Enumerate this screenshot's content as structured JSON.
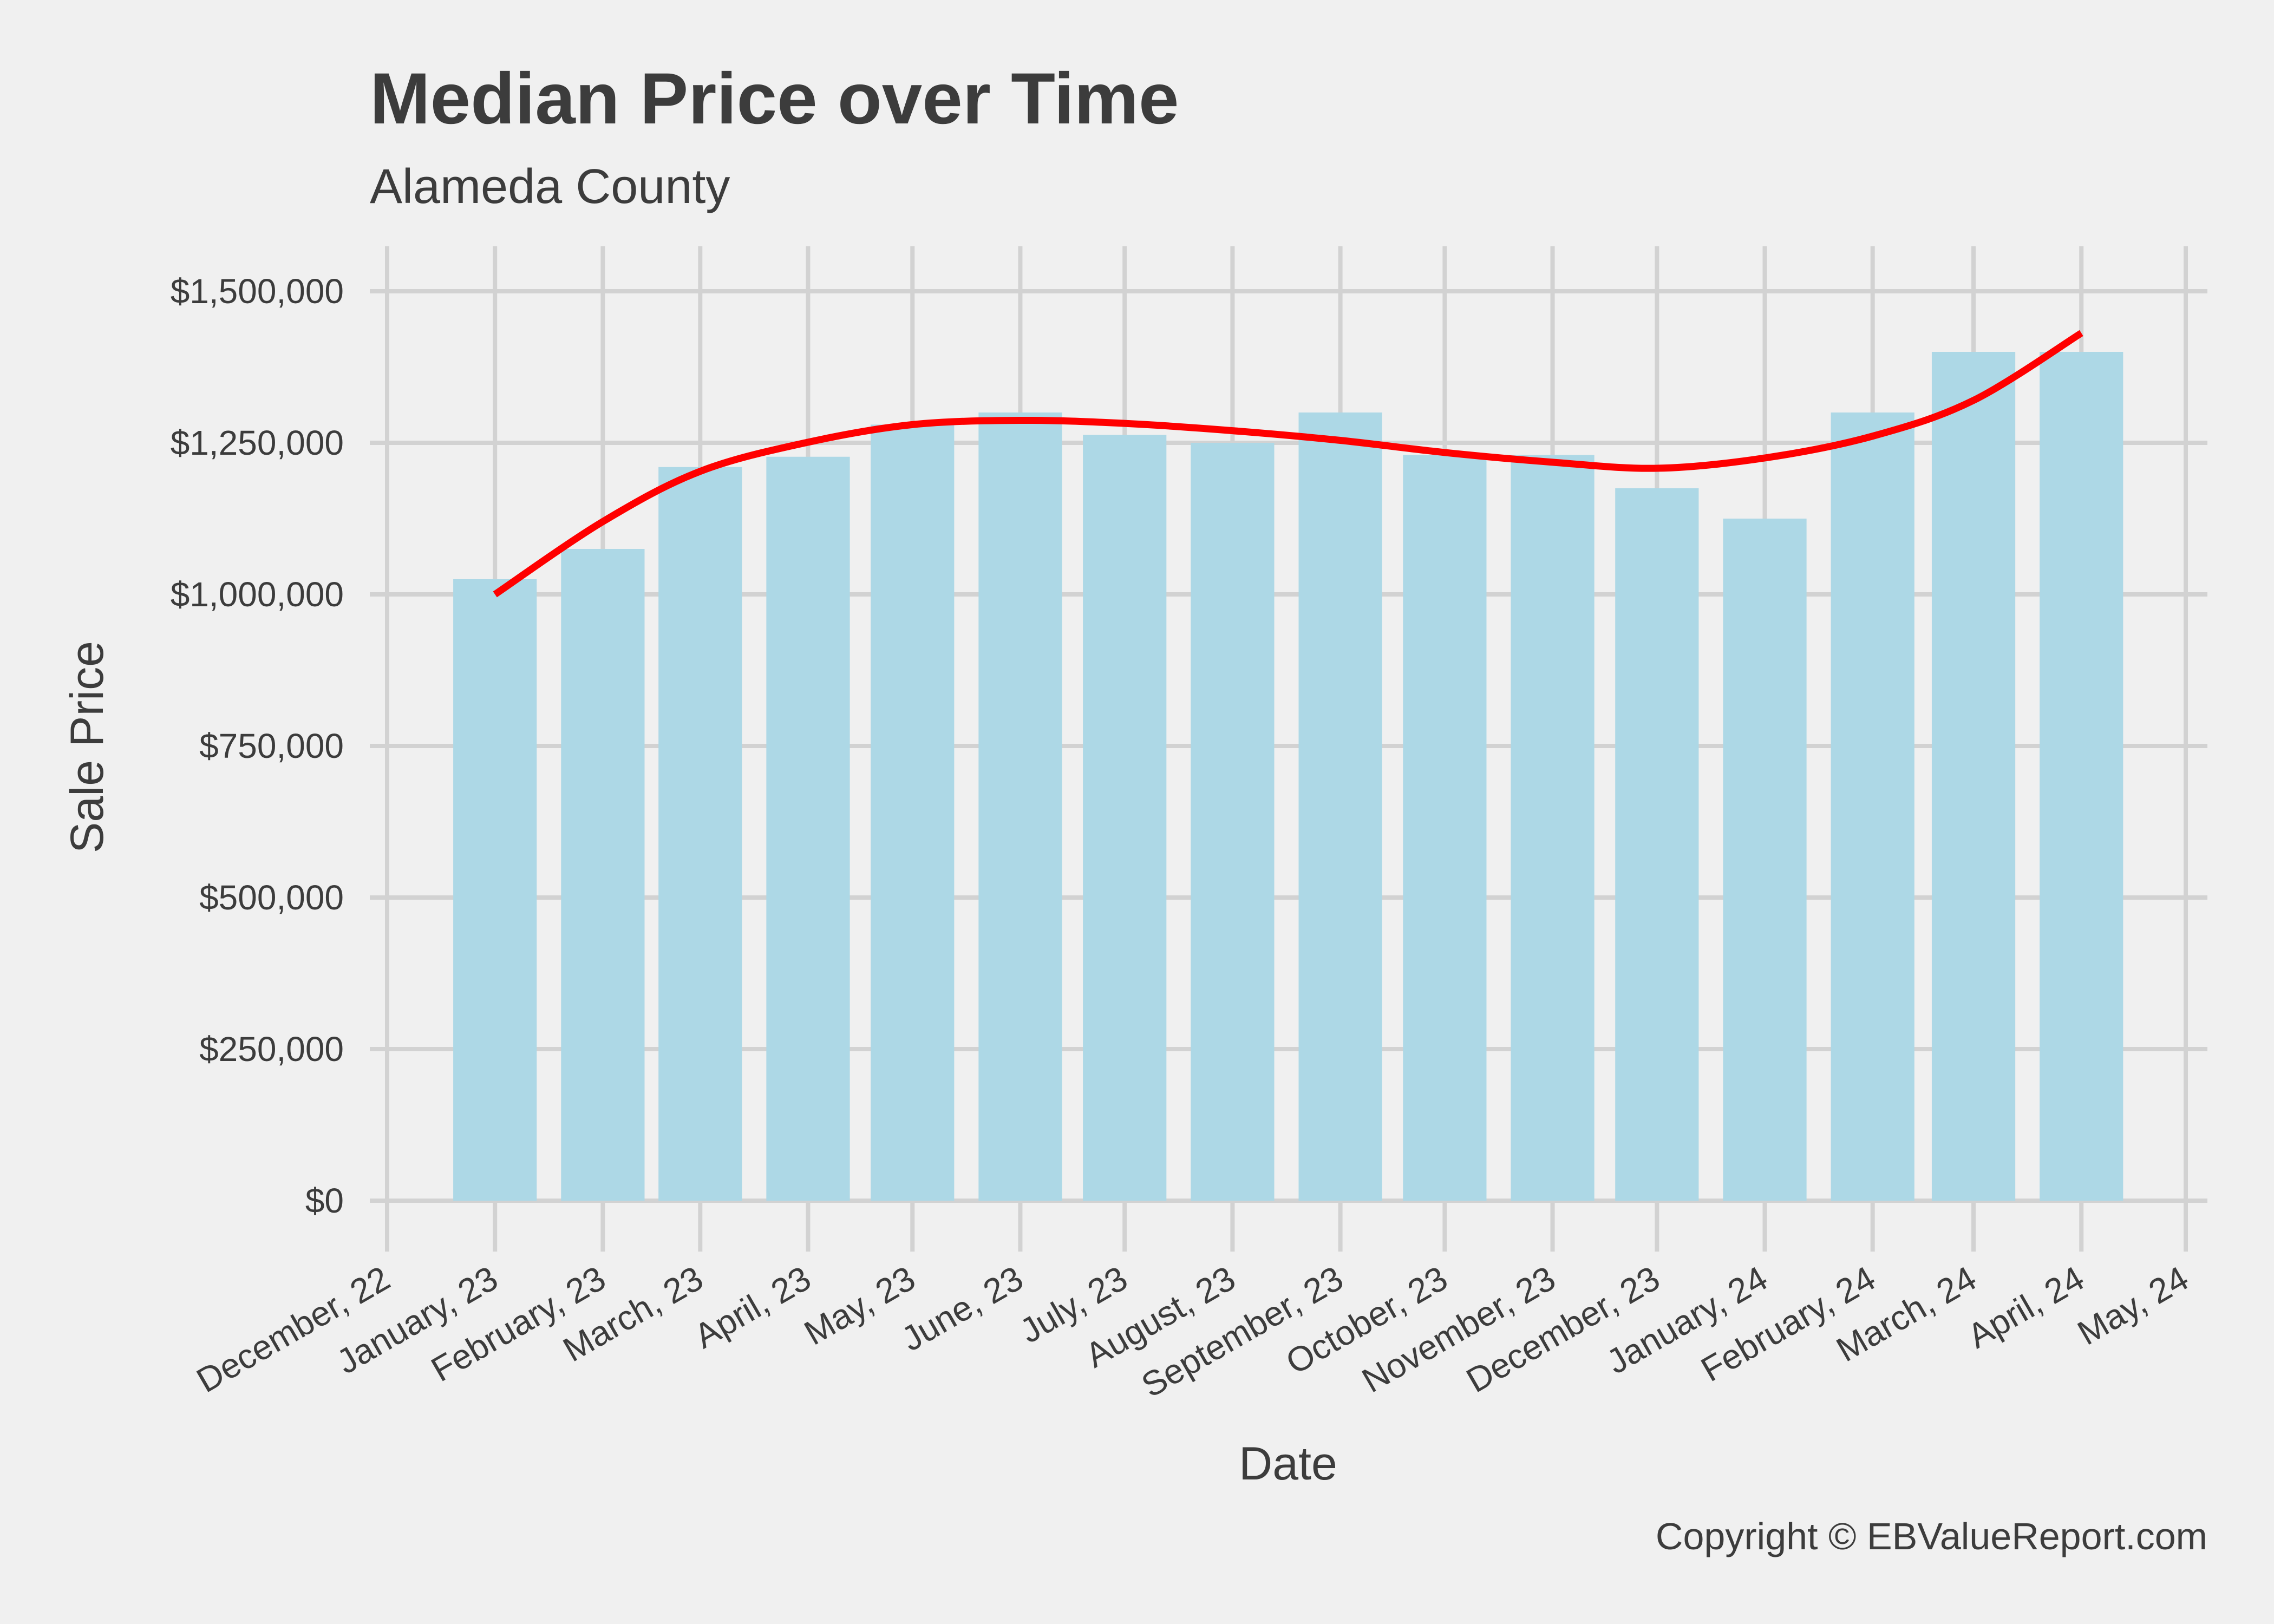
{
  "chart_data": {
    "type": "bar",
    "title": "Median Price over Time",
    "subtitle": "Alameda County",
    "x_label": "Date",
    "y_label": "Sale Price",
    "caption": "Copyright  © EBValueReport.com",
    "x": [
      "2023-01-01",
      "2023-02-01",
      "2023-03-01",
      "2023-04-01",
      "2023-05-01",
      "2023-06-01",
      "2023-07-01",
      "2023-08-01",
      "2023-09-01",
      "2023-10-01",
      "2023-11-01",
      "2023-12-01",
      "2024-01-01",
      "2024-02-01",
      "2024-03-01",
      "2024-04-01"
    ],
    "series": [
      {
        "type": "bar",
        "color": "#add8e6",
        "values": [
          1025000,
          1075000,
          1210000,
          1227000,
          1280000,
          1300000,
          1263000,
          1250000,
          1300000,
          1230000,
          1230000,
          1175000,
          1125000,
          1300000,
          1400000,
          1400000
        ]
      },
      {
        "type": "line",
        "color": "#ff0000",
        "values": [
          1000000,
          1120000,
          1203000,
          1251000,
          1280000,
          1287000,
          1282000,
          1270000,
          1254000,
          1234000,
          1218000,
          1208000,
          1225000,
          1261000,
          1320000,
          1431000
        ]
      }
    ],
    "xlim": [
      "2022-12-01",
      "2024-05-01"
    ],
    "xticks": [
      {
        "value": "2022-12-01",
        "label": "December, 22"
      },
      {
        "value": "2023-01-01",
        "label": "January, 23"
      },
      {
        "value": "2023-02-01",
        "label": "February, 23"
      },
      {
        "value": "2023-03-01",
        "label": "March, 23"
      },
      {
        "value": "2023-04-01",
        "label": "April, 23"
      },
      {
        "value": "2023-05-01",
        "label": "May, 23"
      },
      {
        "value": "2023-06-01",
        "label": "June, 23"
      },
      {
        "value": "2023-07-01",
        "label": "July, 23"
      },
      {
        "value": "2023-08-01",
        "label": "August, 23"
      },
      {
        "value": "2023-09-01",
        "label": "September, 23"
      },
      {
        "value": "2023-10-01",
        "label": "October, 23"
      },
      {
        "value": "2023-11-01",
        "label": "November, 23"
      },
      {
        "value": "2023-12-01",
        "label": "December, 23"
      },
      {
        "value": "2024-01-01",
        "label": "January, 24"
      },
      {
        "value": "2024-02-01",
        "label": "February, 24"
      },
      {
        "value": "2024-03-01",
        "label": "March, 24"
      },
      {
        "value": "2024-04-01",
        "label": "April, 24"
      },
      {
        "value": "2024-05-01",
        "label": "May, 24"
      }
    ],
    "ylim": [
      0,
      1500000
    ],
    "yticks": [
      {
        "value": 0,
        "label": "$0"
      },
      {
        "value": 250000,
        "label": "$250,000"
      },
      {
        "value": 500000,
        "label": "$500,000"
      },
      {
        "value": 750000,
        "label": "$750,000"
      },
      {
        "value": 1000000,
        "label": "$1,000,000"
      },
      {
        "value": 1250000,
        "label": "$1,250,000"
      },
      {
        "value": 1500000,
        "label": "$1,500,000"
      }
    ],
    "grid": true
  }
}
